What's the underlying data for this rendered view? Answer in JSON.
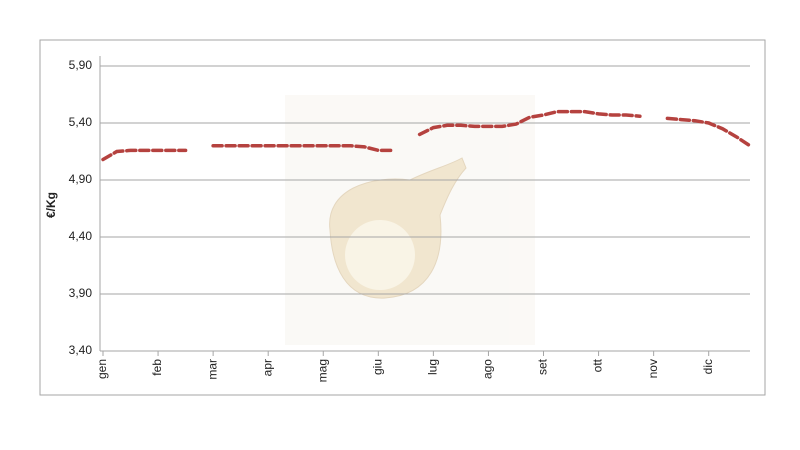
{
  "chart_data": {
    "type": "line",
    "y_label": "€/Kg",
    "categories": [
      "gen",
      null,
      null,
      null,
      "feb",
      null,
      null,
      null,
      "mar",
      null,
      null,
      null,
      "apr",
      null,
      null,
      null,
      "mag",
      null,
      null,
      null,
      "giu",
      null,
      null,
      null,
      "lug",
      null,
      null,
      null,
      "ago",
      null,
      null,
      null,
      "set",
      null,
      null,
      null,
      "ott",
      null,
      null,
      null,
      "nov",
      null,
      null,
      null,
      "dic",
      null,
      null,
      null
    ],
    "values": [
      5.08,
      5.15,
      5.16,
      5.16,
      5.16,
      5.16,
      5.16,
      null,
      5.2,
      5.2,
      5.2,
      5.2,
      5.2,
      5.2,
      5.2,
      5.2,
      5.2,
      5.2,
      5.2,
      5.19,
      5.16,
      5.16,
      null,
      5.3,
      5.36,
      5.38,
      5.38,
      5.37,
      5.37,
      5.37,
      5.39,
      5.45,
      5.47,
      5.5,
      5.5,
      5.5,
      5.48,
      5.47,
      5.47,
      5.46,
      null,
      5.44,
      5.43,
      5.42,
      5.4,
      5.35,
      5.28,
      5.2
    ],
    "color": "#b5423f",
    "ylim": [
      3.4,
      5.9
    ],
    "yticks": [
      {
        "value": 3.4,
        "label": "3,40"
      },
      {
        "value": 3.9,
        "label": "3,90"
      },
      {
        "value": 4.4,
        "label": "4,40"
      },
      {
        "value": 4.9,
        "label": "4,90"
      },
      {
        "value": 5.4,
        "label": "5,40"
      },
      {
        "value": 5.9,
        "label": "5,90"
      }
    ],
    "grid": true
  }
}
